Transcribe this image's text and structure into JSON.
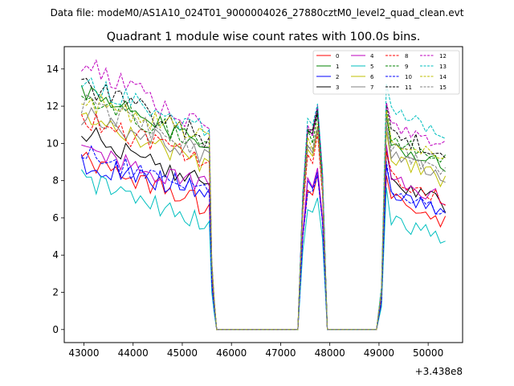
{
  "suptitle": "Data file: modeM0/AS1A10_024T01_9000004026_27880cztM0_level2_quad_clean.evt",
  "chart_data": {
    "type": "line",
    "title": "Quadrant 1 module wise count rates with 100.0s bins.",
    "xlabel": "",
    "ylabel": "",
    "offset_label": "+3.438e8",
    "xlim": [
      42600,
      50700
    ],
    "ylim": [
      -0.7,
      15.2
    ],
    "xticks": [
      43000,
      44000,
      45000,
      46000,
      47000,
      48000,
      49000,
      50000
    ],
    "xtick_labels": [
      "43000",
      "44000",
      "45000",
      "46000",
      "47000",
      "48000",
      "49000",
      "50000"
    ],
    "yticks": [
      0,
      2,
      4,
      6,
      8,
      10,
      12,
      14
    ],
    "ytick_labels": [
      "0",
      "2",
      "4",
      "6",
      "8",
      "10",
      "12",
      "14"
    ],
    "grid": false,
    "legend_position": "top-right",
    "x": [
      42950,
      43050,
      43150,
      43250,
      43350,
      43450,
      43550,
      43650,
      43750,
      43850,
      43950,
      44050,
      44150,
      44250,
      44350,
      44450,
      44550,
      44650,
      44750,
      44850,
      44950,
      45050,
      45150,
      45250,
      45350,
      45450,
      45550,
      45600,
      45650,
      45700,
      45800,
      46000,
      46500,
      47000,
      47350,
      47450,
      47550,
      47650,
      47750,
      47850,
      47950,
      48000,
      48500,
      48950,
      49050,
      49150,
      49250,
      49350,
      49450,
      49550,
      49650,
      49750,
      49850,
      49950,
      50050,
      50150,
      50250,
      50350
    ],
    "series": [
      {
        "name": "0",
        "color": "#ff0000",
        "dash": "solid",
        "base": 9.2,
        "slope": -2.6,
        "flare": 8.3,
        "late": 7.1
      },
      {
        "name": "1",
        "color": "#008000",
        "dash": "solid",
        "base": 13.0,
        "slope": -3.4,
        "flare": 11.8,
        "late": 10.0
      },
      {
        "name": "2",
        "color": "#0000ff",
        "dash": "solid",
        "base": 8.9,
        "slope": -1.4,
        "flare": 8.4,
        "late": 7.4
      },
      {
        "name": "3",
        "color": "#000000",
        "dash": "solid",
        "base": 10.6,
        "slope": -2.9,
        "flare": 12.0,
        "late": 8.0
      },
      {
        "name": "4",
        "color": "#bf00bf",
        "dash": "solid",
        "base": 9.6,
        "slope": -2.0,
        "flare": 8.6,
        "late": 8.3
      },
      {
        "name": "5",
        "color": "#00bfbf",
        "dash": "solid",
        "base": 8.1,
        "slope": -2.4,
        "flare": 7.0,
        "late": 6.1
      },
      {
        "name": "6",
        "color": "#bfbf00",
        "dash": "solid",
        "base": 11.4,
        "slope": -2.5,
        "flare": 10.6,
        "late": 9.3
      },
      {
        "name": "7",
        "color": "#808080",
        "dash": "solid",
        "base": 11.5,
        "slope": -2.1,
        "flare": 10.8,
        "late": 9.6
      },
      {
        "name": "8",
        "color": "#ff0000",
        "dash": "dashed",
        "base": 11.3,
        "slope": -2.4,
        "flare": 10.4,
        "late": 8.3
      },
      {
        "name": "9",
        "color": "#008000",
        "dash": "dashed",
        "base": 12.6,
        "slope": -2.7,
        "flare": 11.6,
        "late": 10.3
      },
      {
        "name": "10",
        "color": "#0000ff",
        "dash": "dashed",
        "base": 9.6,
        "slope": -2.4,
        "flare": 8.2,
        "late": 7.7
      },
      {
        "name": "11",
        "color": "#000000",
        "dash": "dashed",
        "base": 13.2,
        "slope": -3.0,
        "flare": 11.7,
        "late": 10.7
      },
      {
        "name": "12",
        "color": "#bf00bf",
        "dash": "dashed",
        "base": 14.4,
        "slope": -3.8,
        "flare": 12.1,
        "late": 11.0
      },
      {
        "name": "13",
        "color": "#00bfbf",
        "dash": "dashed",
        "base": 13.4,
        "slope": -2.8,
        "flare": 12.2,
        "late": 11.7
      },
      {
        "name": "14",
        "color": "#bfbf00",
        "dash": "dashed",
        "base": 12.4,
        "slope": -2.0,
        "flare": 11.0,
        "late": 10.4
      },
      {
        "name": "15",
        "color": "#808080",
        "dash": "dashed",
        "base": 12.1,
        "slope": -2.4,
        "flare": 10.8,
        "late": 9.8
      }
    ]
  }
}
